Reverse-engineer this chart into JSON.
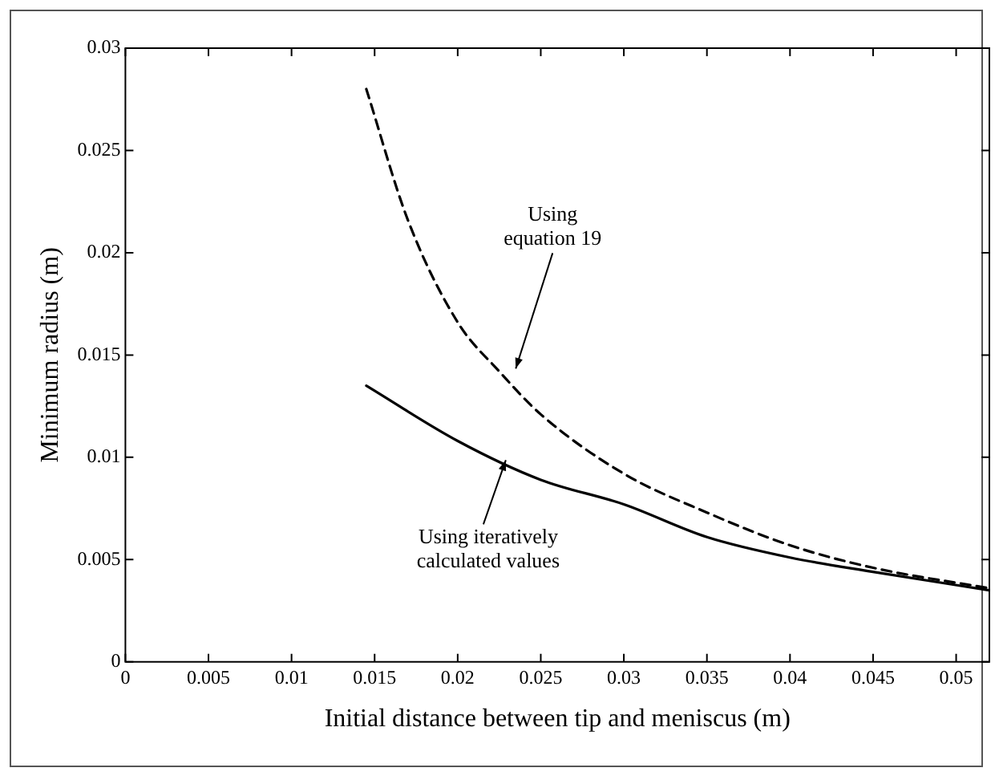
{
  "chart_data": {
    "type": "line",
    "xlabel": "Initial distance between tip and meniscus (m)",
    "ylabel": "Minimum radius (m)",
    "xlim": [
      0,
      0.052
    ],
    "xticks": [
      0,
      0.005,
      0.01,
      0.015,
      0.02,
      0.025,
      0.03,
      0.035,
      0.04,
      0.045,
      0.05
    ],
    "ylim": [
      0,
      0.03
    ],
    "yticks": [
      0,
      0.005,
      0.01,
      0.015,
      0.02,
      0.025,
      0.03
    ],
    "grid": false,
    "legend": false,
    "marker": "none",
    "series": [
      {
        "color": "#000000",
        "line_style": "dashed",
        "x": [
          0.0145,
          0.017,
          0.02,
          0.0225,
          0.025,
          0.03,
          0.035,
          0.04,
          0.045,
          0.052
        ],
        "values": [
          0.028,
          0.0216,
          0.0166,
          0.0142,
          0.0121,
          0.0092,
          0.0073,
          0.0057,
          0.0046,
          0.0036
        ]
      },
      {
        "color": "#000000",
        "line_style": "solid",
        "x": [
          0.0145,
          0.02,
          0.025,
          0.03,
          0.035,
          0.04,
          0.045,
          0.052
        ],
        "values": [
          0.0135,
          0.0108,
          0.0089,
          0.0077,
          0.0061,
          0.0051,
          0.0044,
          0.0035
        ]
      }
    ],
    "annotations": [
      {
        "text": "Using\nequation 19",
        "x": 0.0233,
        "y": 0.0141
      },
      {
        "text": "Using iteratively\ncalculated values",
        "x": 0.0228,
        "y": 0.0101
      }
    ]
  }
}
